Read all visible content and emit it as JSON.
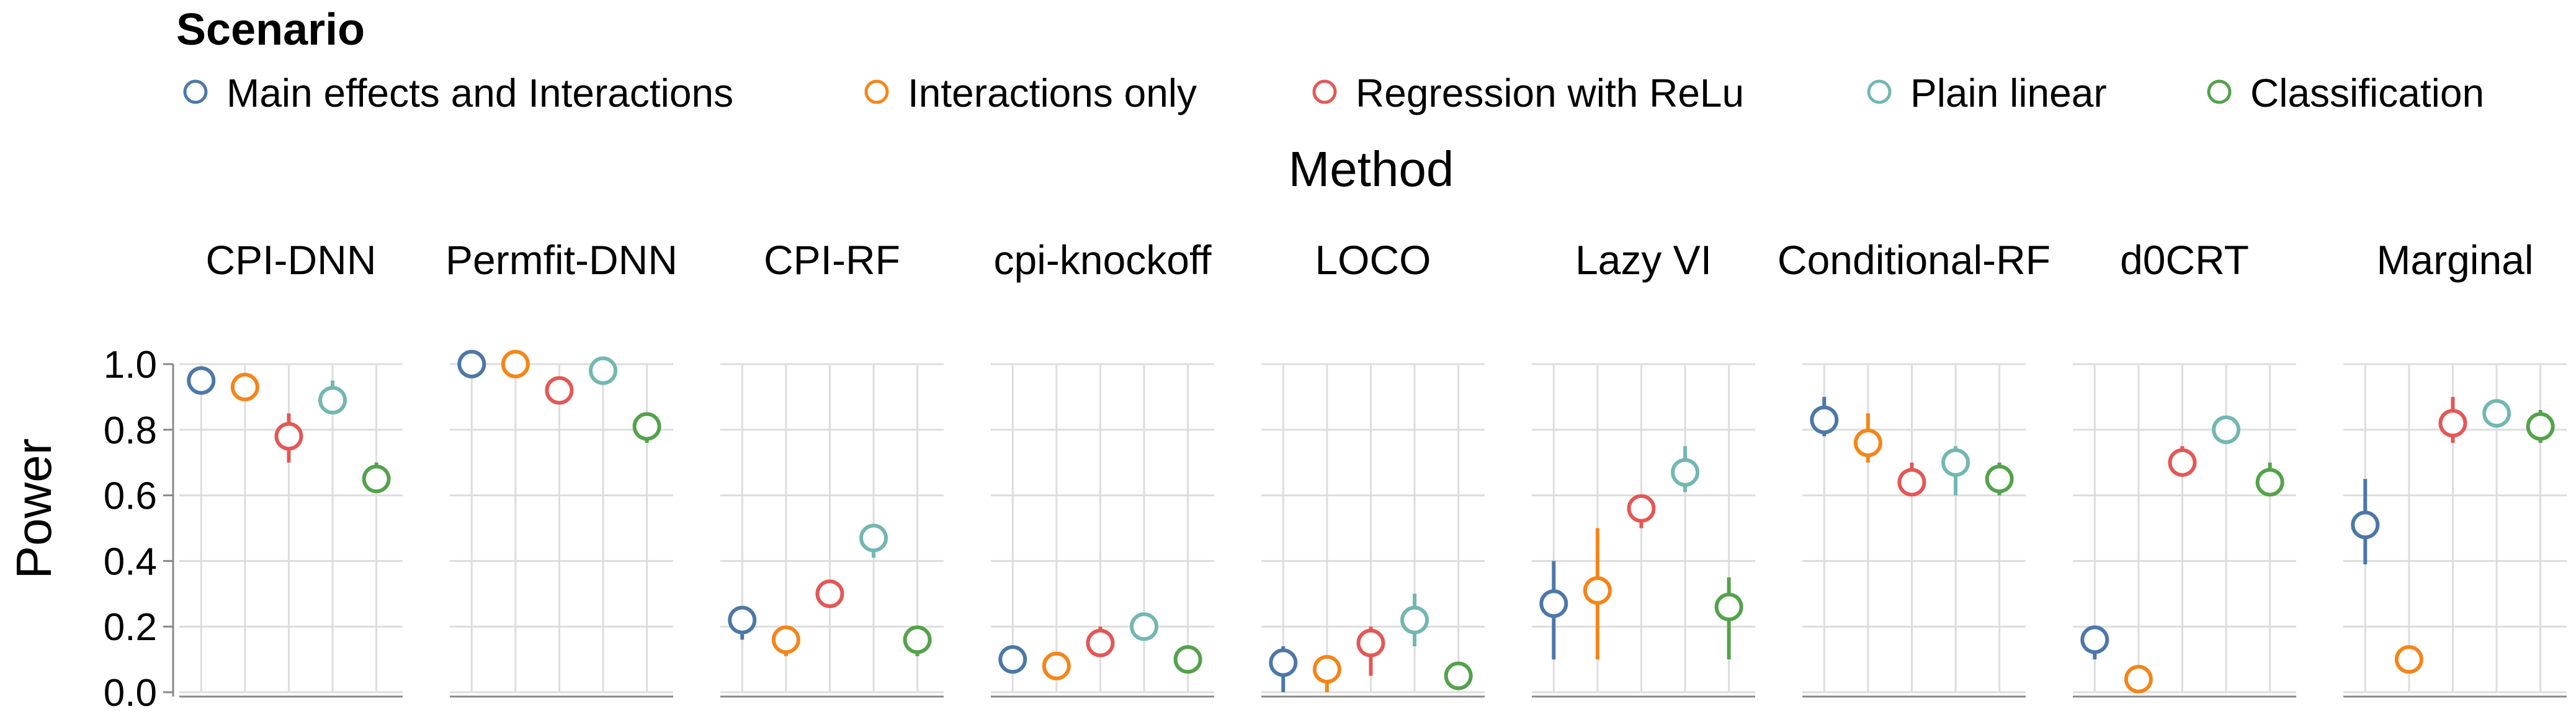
{
  "legend": {
    "title": "Scenario",
    "items": [
      {
        "label": "Main effects and Interactions",
        "color": "#4c78a8"
      },
      {
        "label": "Interactions only",
        "color": "#f58518"
      },
      {
        "label": "Regression with ReLu",
        "color": "#e45756"
      },
      {
        "label": "Plain linear",
        "color": "#72b7b2"
      },
      {
        "label": "Classification",
        "color": "#54a24b"
      }
    ]
  },
  "chart_data": {
    "type": "scatter",
    "facet_title": "Method",
    "ylabel": "Power",
    "ylim": [
      0,
      1
    ],
    "yticks": [
      "0.0",
      "0.2",
      "0.4",
      "0.6",
      "0.8",
      "1.0"
    ],
    "grid": true,
    "legend_placement": "top",
    "series_names": [
      "Main effects and Interactions",
      "Interactions only",
      "Regression with ReLu",
      "Plain linear",
      "Classification"
    ],
    "panels": [
      {
        "method": "CPI-DNN",
        "points": [
          {
            "y": 0.95,
            "lo": 0.92,
            "hi": 0.99
          },
          {
            "y": 0.93,
            "lo": 0.91,
            "hi": 0.95
          },
          {
            "y": 0.78,
            "lo": 0.7,
            "hi": 0.85
          },
          {
            "y": 0.89,
            "lo": 0.85,
            "hi": 0.95
          },
          {
            "y": 0.65,
            "lo": 0.61,
            "hi": 0.7
          }
        ]
      },
      {
        "method": "Permfit-DNN",
        "points": [
          {
            "y": 1.0,
            "lo": 1.0,
            "hi": 1.0
          },
          {
            "y": 1.0,
            "lo": 0.99,
            "hi": 1.0
          },
          {
            "y": 0.92,
            "lo": 0.9,
            "hi": 0.94
          },
          {
            "y": 0.98,
            "lo": 0.96,
            "hi": 1.0
          },
          {
            "y": 0.81,
            "lo": 0.76,
            "hi": 0.85
          }
        ]
      },
      {
        "method": "CPI-RF",
        "points": [
          {
            "y": 0.22,
            "lo": 0.16,
            "hi": 0.26
          },
          {
            "y": 0.16,
            "lo": 0.11,
            "hi": 0.2
          },
          {
            "y": 0.3,
            "lo": 0.26,
            "hi": 0.34
          },
          {
            "y": 0.47,
            "lo": 0.41,
            "hi": 0.51
          },
          {
            "y": 0.16,
            "lo": 0.11,
            "hi": 0.2
          }
        ]
      },
      {
        "method": "cpi-knockoff",
        "points": [
          {
            "y": 0.1,
            "lo": 0.06,
            "hi": 0.14
          },
          {
            "y": 0.08,
            "lo": 0.06,
            "hi": 0.11
          },
          {
            "y": 0.15,
            "lo": 0.11,
            "hi": 0.2
          },
          {
            "y": 0.2,
            "lo": 0.17,
            "hi": 0.24
          },
          {
            "y": 0.1,
            "lo": 0.06,
            "hi": 0.14
          }
        ]
      },
      {
        "method": "LOCO",
        "points": [
          {
            "y": 0.09,
            "lo": 0.0,
            "hi": 0.14
          },
          {
            "y": 0.07,
            "lo": 0.0,
            "hi": 0.11
          },
          {
            "y": 0.15,
            "lo": 0.05,
            "hi": 0.2
          },
          {
            "y": 0.22,
            "lo": 0.14,
            "hi": 0.3
          },
          {
            "y": 0.05,
            "lo": 0.02,
            "hi": 0.07
          }
        ]
      },
      {
        "method": "Lazy VI",
        "points": [
          {
            "y": 0.27,
            "lo": 0.1,
            "hi": 0.4
          },
          {
            "y": 0.31,
            "lo": 0.1,
            "hi": 0.5
          },
          {
            "y": 0.56,
            "lo": 0.5,
            "hi": 0.6
          },
          {
            "y": 0.67,
            "lo": 0.61,
            "hi": 0.75
          },
          {
            "y": 0.26,
            "lo": 0.1,
            "hi": 0.35
          }
        ]
      },
      {
        "method": "Conditional-RF",
        "points": [
          {
            "y": 0.83,
            "lo": 0.78,
            "hi": 0.9
          },
          {
            "y": 0.76,
            "lo": 0.7,
            "hi": 0.85
          },
          {
            "y": 0.64,
            "lo": 0.6,
            "hi": 0.7
          },
          {
            "y": 0.7,
            "lo": 0.6,
            "hi": 0.75
          },
          {
            "y": 0.65,
            "lo": 0.6,
            "hi": 0.7
          }
        ]
      },
      {
        "method": "d0CRT",
        "points": [
          {
            "y": 0.16,
            "lo": 0.1,
            "hi": 0.2
          },
          {
            "y": 0.04,
            "lo": 0.0,
            "hi": 0.06
          },
          {
            "y": 0.7,
            "lo": 0.66,
            "hi": 0.75
          },
          {
            "y": 0.8,
            "lo": 0.76,
            "hi": 0.84
          },
          {
            "y": 0.64,
            "lo": 0.6,
            "hi": 0.7
          }
        ]
      },
      {
        "method": "Marginal",
        "points": [
          {
            "y": 0.51,
            "lo": 0.39,
            "hi": 0.65
          },
          {
            "y": 0.1,
            "lo": 0.07,
            "hi": 0.13
          },
          {
            "y": 0.82,
            "lo": 0.76,
            "hi": 0.9
          },
          {
            "y": 0.85,
            "lo": 0.82,
            "hi": 0.88
          },
          {
            "y": 0.81,
            "lo": 0.76,
            "hi": 0.86
          }
        ]
      }
    ]
  }
}
